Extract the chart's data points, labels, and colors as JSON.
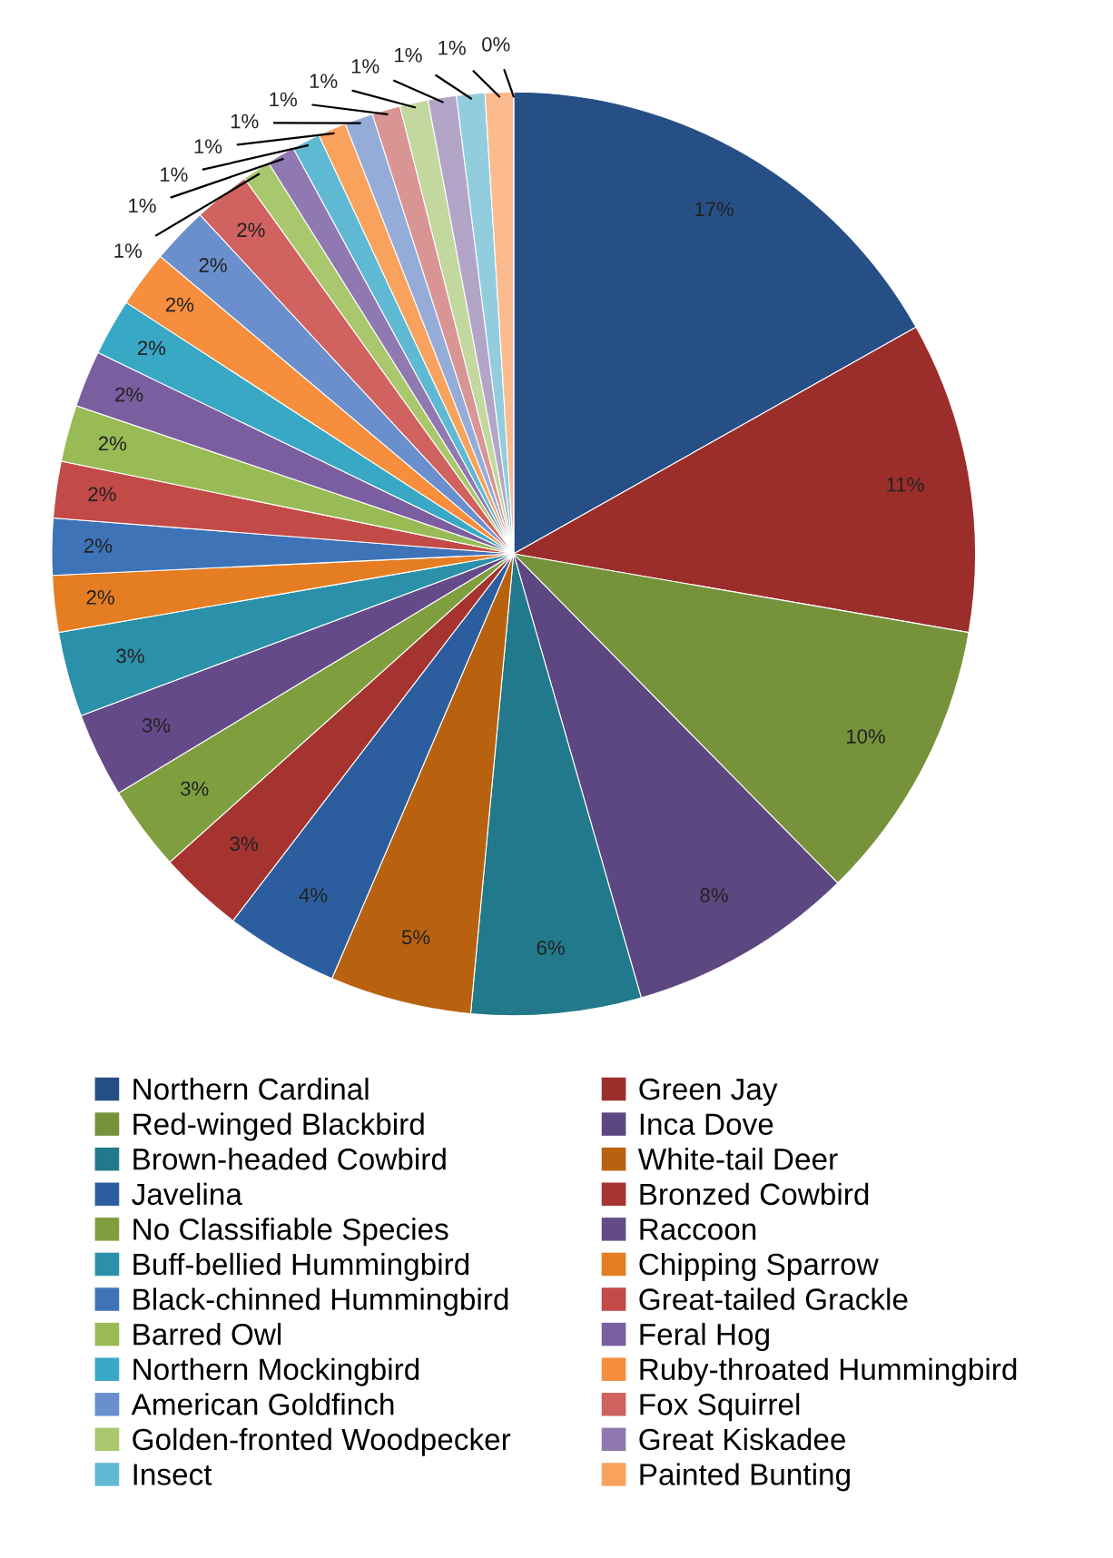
{
  "chart_data": {
    "type": "pie",
    "categories": [
      "Northern Cardinal",
      "Green Jay",
      "Red-winged Blackbird",
      "Inca Dove",
      "Brown-headed Cowbird",
      "White-tail Deer",
      "Javelina",
      "Bronzed Cowbird",
      "No Classifiable Species",
      "Raccoon",
      "Buff-bellied Hummingbird",
      "Chipping Sparrow",
      "Black-chinned Hummingbird",
      "Great-tailed Grackle",
      "Barred Owl",
      "Feral Hog",
      "Northern Mockingbird",
      "Ruby-throated Hummingbird",
      "American Goldfinch",
      "Fox Squirrel",
      "Golden-fronted Woodpecker",
      "Great Kiskadee",
      "Insect",
      "Painted Bunting",
      null,
      null,
      null,
      null,
      null,
      null,
      null
    ],
    "values": [
      17,
      11,
      10,
      8,
      6,
      5,
      4,
      3,
      3,
      3,
      3,
      2,
      2,
      2,
      2,
      2,
      2,
      2,
      2,
      2,
      1,
      1,
      1,
      1,
      1,
      1,
      1,
      1,
      1,
      1,
      0
    ],
    "colors": [
      "#254f85",
      "#9b2d2b",
      "#76923b",
      "#5d4780",
      "#21798b",
      "#b8620f",
      "#2c5e9f",
      "#a53431",
      "#7f9f3f",
      "#654a89",
      "#2b90aa",
      "#e57d22",
      "#3f73b8",
      "#c24a47",
      "#98bb55",
      "#7b5ea0",
      "#38a8c5",
      "#f68e3d",
      "#6a8fcc",
      "#d0625f",
      "#a9c86d",
      "#9079b0",
      "#5fb9d2",
      "#f8a25d",
      "#95acd8",
      "#d99494",
      "#c3d89e",
      "#b3a5c8",
      "#92cddd",
      "#fbbb8f",
      "#b8c7e3"
    ],
    "value_labels": [
      "17%",
      "11%",
      "10%",
      "8%",
      "6%",
      "5%",
      "4%",
      "3%",
      "3%",
      "3%",
      "3%",
      "2%",
      "2%",
      "2%",
      "2%",
      "2%",
      "2%",
      "2%",
      "2%",
      "2%",
      "1%",
      "1%",
      "1%",
      "1%",
      "1%",
      "1%",
      "1%",
      "1%",
      "1%",
      "1%",
      "0%"
    ],
    "legend": "bottom"
  }
}
